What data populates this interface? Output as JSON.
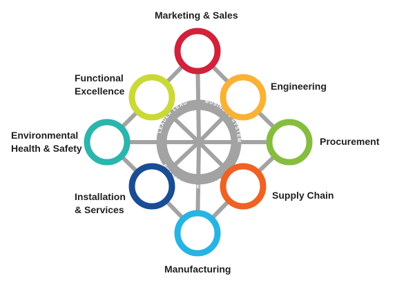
{
  "diagram": {
    "center": {
      "arc_texts": [
        "LEADER LEAD",
        "BUSINESS SYSTEMS",
        "PROCESS EXCELLENCE"
      ]
    },
    "nodes": [
      {
        "id": "marketing-sales",
        "lines": [
          "Marketing & Sales"
        ],
        "color": "#d2213a"
      },
      {
        "id": "engineering",
        "lines": [
          "Engineering"
        ],
        "color": "#f9b233"
      },
      {
        "id": "procurement",
        "lines": [
          "Procurement"
        ],
        "color": "#86bd3f"
      },
      {
        "id": "supply-chain",
        "lines": [
          "Supply Chain"
        ],
        "color": "#ee6224"
      },
      {
        "id": "manufacturing",
        "lines": [
          "Manufacturing"
        ],
        "color": "#27b4e2"
      },
      {
        "id": "installation-services",
        "lines": [
          "Installation",
          "& Services"
        ],
        "color": "#194d94"
      },
      {
        "id": "environmental-health-safety",
        "lines": [
          "Environmental",
          "Health & Safety"
        ],
        "color": "#2bb5ad"
      },
      {
        "id": "functional-excellence",
        "lines": [
          "Functional",
          "Excellence"
        ],
        "color": "#cad936"
      }
    ],
    "connector_color": "#a3a3a3"
  }
}
